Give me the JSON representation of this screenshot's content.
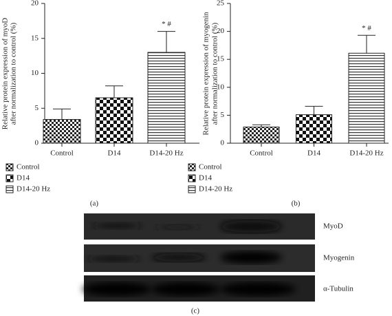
{
  "chart_data": [
    {
      "type": "bar",
      "ylabel": [
        "Relative protein expression of myoD",
        "after normalization to control (%)"
      ],
      "categories": [
        "Control",
        "D14",
        "D14-20 Hz"
      ],
      "values": [
        3.4,
        6.5,
        13.0
      ],
      "errors": [
        1.5,
        1.7,
        3.0
      ],
      "annotations": [
        null,
        null,
        "* #"
      ],
      "ylim": [
        0,
        20
      ],
      "yticks": [
        0,
        5,
        10,
        15,
        20
      ],
      "caption": "(a)"
    },
    {
      "type": "bar",
      "ylabel": [
        "Relative protein expression of myogenin",
        "after normalization to control (%)"
      ],
      "categories": [
        "Control",
        "D14",
        "D14-20 Hz"
      ],
      "values": [
        2.9,
        5.1,
        16.1
      ],
      "errors": [
        0.4,
        1.5,
        3.2
      ],
      "annotations": [
        null,
        null,
        "* #"
      ],
      "ylim": [
        0,
        25
      ],
      "yticks": [
        0,
        5,
        10,
        15,
        20,
        25
      ],
      "caption": "(b)"
    }
  ],
  "blot": {
    "rows": [
      "MyoD",
      "Myogenin",
      "α-Tubulin"
    ],
    "caption": "(c)"
  }
}
